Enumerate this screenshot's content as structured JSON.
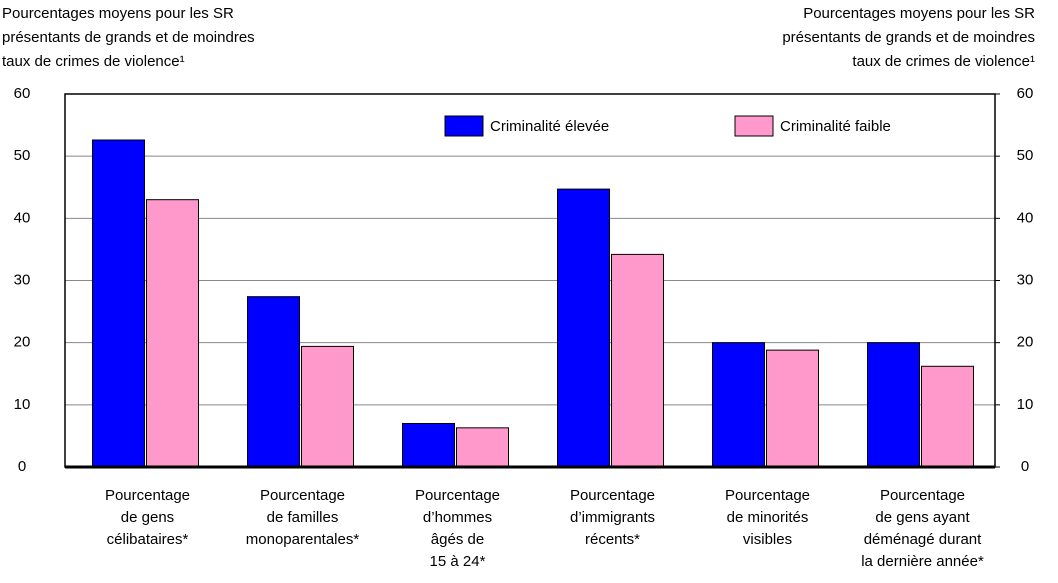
{
  "chart_data": {
    "type": "bar",
    "y_label": [
      "Pourcentages moyens pour les SR",
      "présentants de grands et de moindres",
      "taux de crimes de violence¹"
    ],
    "y2_label": [
      "Pourcentages moyens pour les SR",
      "présentants de grands et de moindres",
      "taux de crimes de violence¹"
    ],
    "categories": [
      [
        "Pourcentage",
        "de gens",
        "célibataires*"
      ],
      [
        "Pourcentage",
        "de familles",
        "monoparentales*"
      ],
      [
        "Pourcentage",
        "d’hommes",
        "âgés de",
        "15 à 24*"
      ],
      [
        "Pourcentage",
        "d’immigrants",
        "récents*"
      ],
      [
        "Pourcentage",
        "de minorités",
        "visibles"
      ],
      [
        "Pourcentage",
        "de gens ayant",
        "déménagé durant",
        "la dernière année*"
      ]
    ],
    "series": [
      {
        "name": "Criminalité élevée",
        "color": "#0000ff",
        "values": [
          52.6,
          27.4,
          7.0,
          44.7,
          20.0,
          20.0
        ]
      },
      {
        "name": "Criminalité faible",
        "color": "#ff99cc",
        "values": [
          43.0,
          19.4,
          6.3,
          34.2,
          18.8,
          16.2
        ]
      }
    ],
    "ylim": [
      0,
      60
    ],
    "yticks": [
      0,
      10,
      20,
      30,
      40,
      50,
      60
    ],
    "y2lim": [
      0,
      60
    ],
    "y2ticks": [
      0,
      10,
      20,
      30,
      40,
      50,
      60
    ],
    "grid": true,
    "legend": "top"
  }
}
